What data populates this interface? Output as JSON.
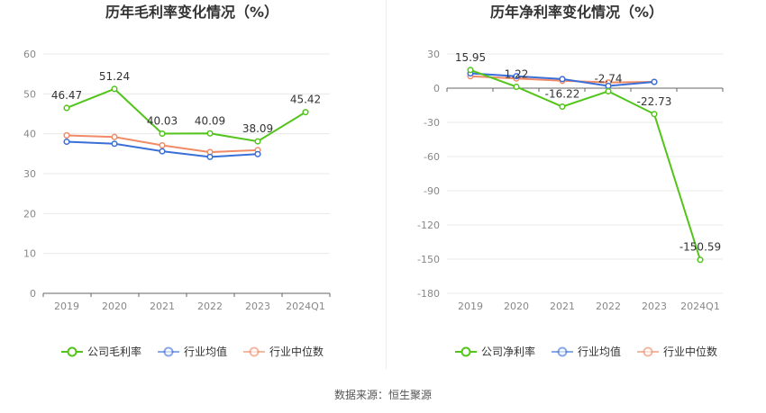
{
  "source_label": "数据来源：恒生聚源",
  "chart_data": [
    {
      "type": "line",
      "title": "历年毛利率变化情况（%）",
      "categories": [
        "2019",
        "2020",
        "2021",
        "2022",
        "2023",
        "2024Q1"
      ],
      "ylim": [
        0,
        60
      ],
      "yticks": [
        0,
        10,
        20,
        30,
        40,
        50,
        60
      ],
      "grid": true,
      "legend_position": "bottom",
      "series": [
        {
          "name": "公司毛利率",
          "color": "#52c41a",
          "labeled": true,
          "values": [
            46.47,
            51.24,
            40.03,
            40.09,
            38.09,
            45.42
          ],
          "labels": [
            "46.47",
            "51.24",
            "40.03",
            "40.09",
            "38.09",
            "45.42"
          ]
        },
        {
          "name": "行业均值",
          "color": "#3a6fd8",
          "labeled": false,
          "values": [
            38.0,
            37.5,
            35.6,
            34.2,
            34.9,
            null
          ]
        },
        {
          "name": "行业中位数",
          "color": "#f08a67",
          "labeled": false,
          "values": [
            39.6,
            39.2,
            37.1,
            35.4,
            35.9,
            null
          ]
        }
      ]
    },
    {
      "type": "line",
      "title": "历年净利率变化情况（%）",
      "categories": [
        "2019",
        "2020",
        "2021",
        "2022",
        "2023",
        "2024Q1"
      ],
      "ylim": [
        -180,
        30
      ],
      "yticks": [
        -180,
        -150,
        -120,
        -90,
        -60,
        -30,
        0,
        30
      ],
      "grid": true,
      "legend_position": "bottom",
      "series": [
        {
          "name": "公司净利率",
          "color": "#52c41a",
          "labeled": true,
          "values": [
            15.95,
            1.22,
            -16.22,
            -2.74,
            -22.73,
            -150.59
          ],
          "labels": [
            "15.95",
            "1.22",
            "-16.22",
            "-2.74",
            "-22.73",
            "-150.59"
          ]
        },
        {
          "name": "行业均值",
          "color": "#3a6fd8",
          "labeled": false,
          "values": [
            13.0,
            10.5,
            8.0,
            2.0,
            5.5,
            null
          ]
        },
        {
          "name": "行业中位数",
          "color": "#f08a67",
          "labeled": false,
          "values": [
            10.5,
            8.5,
            6.5,
            5.0,
            5.5,
            null
          ]
        }
      ]
    }
  ]
}
